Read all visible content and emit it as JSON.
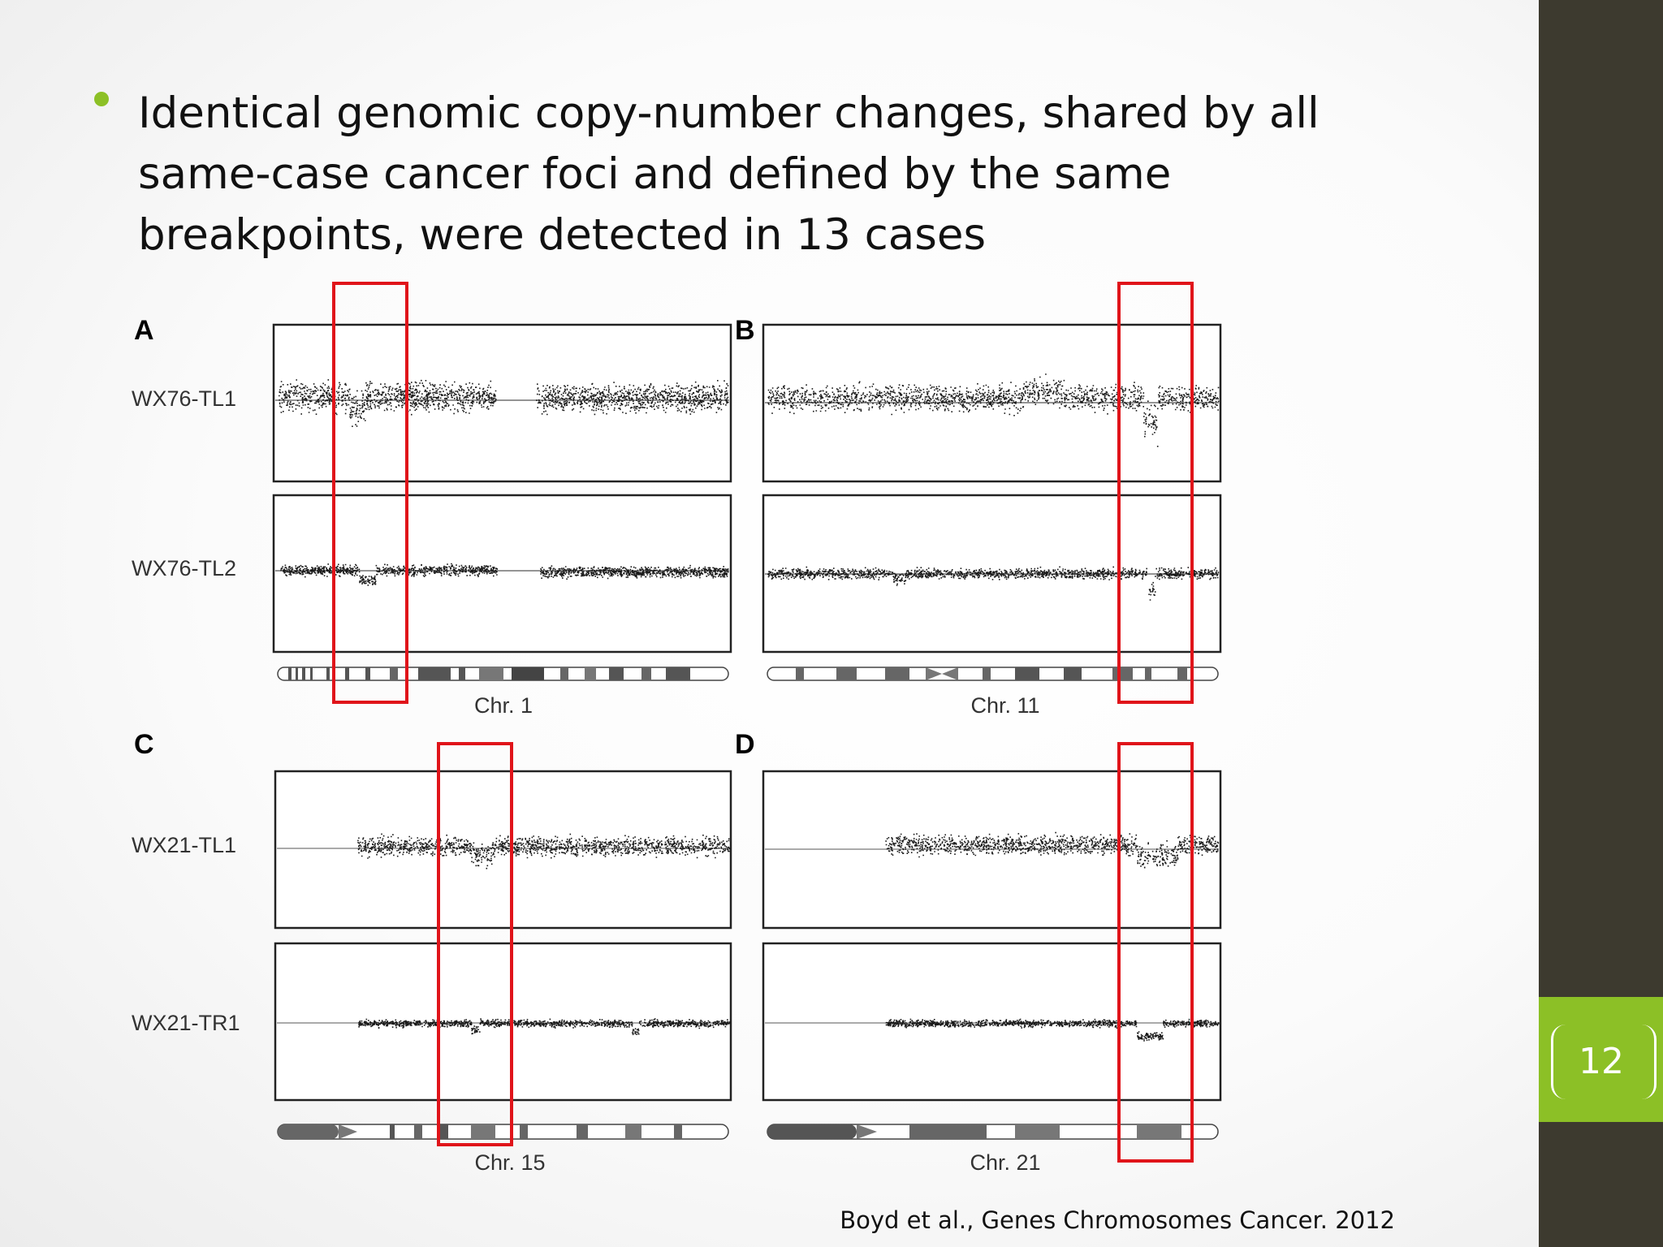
{
  "slide": {
    "bullet": "Identical genomic copy-number changes, shared by all same-case cancer foci and defined by the same breakpoints, were detected in 13 cases",
    "citation": "Boyd et al., Genes Chromosomes Cancer. 2012",
    "page_number": "12"
  },
  "colors": {
    "accent_green": "#8cc026",
    "sidebar": "#3d3a2f",
    "highlight_red": "#e0141a"
  },
  "figure": {
    "panels": [
      {
        "letter": "A",
        "chromosome": "Chr. 1",
        "samples": [
          "WX76-TL1",
          "WX76-TL2"
        ]
      },
      {
        "letter": "B",
        "chromosome": "Chr. 11",
        "samples": [
          "",
          ""
        ]
      },
      {
        "letter": "C",
        "chromosome": "Chr. 15",
        "samples": [
          "WX21-TL1",
          "WX21-TR1"
        ]
      },
      {
        "letter": "D",
        "chromosome": "Chr. 21",
        "samples": [
          "",
          ""
        ]
      }
    ]
  }
}
